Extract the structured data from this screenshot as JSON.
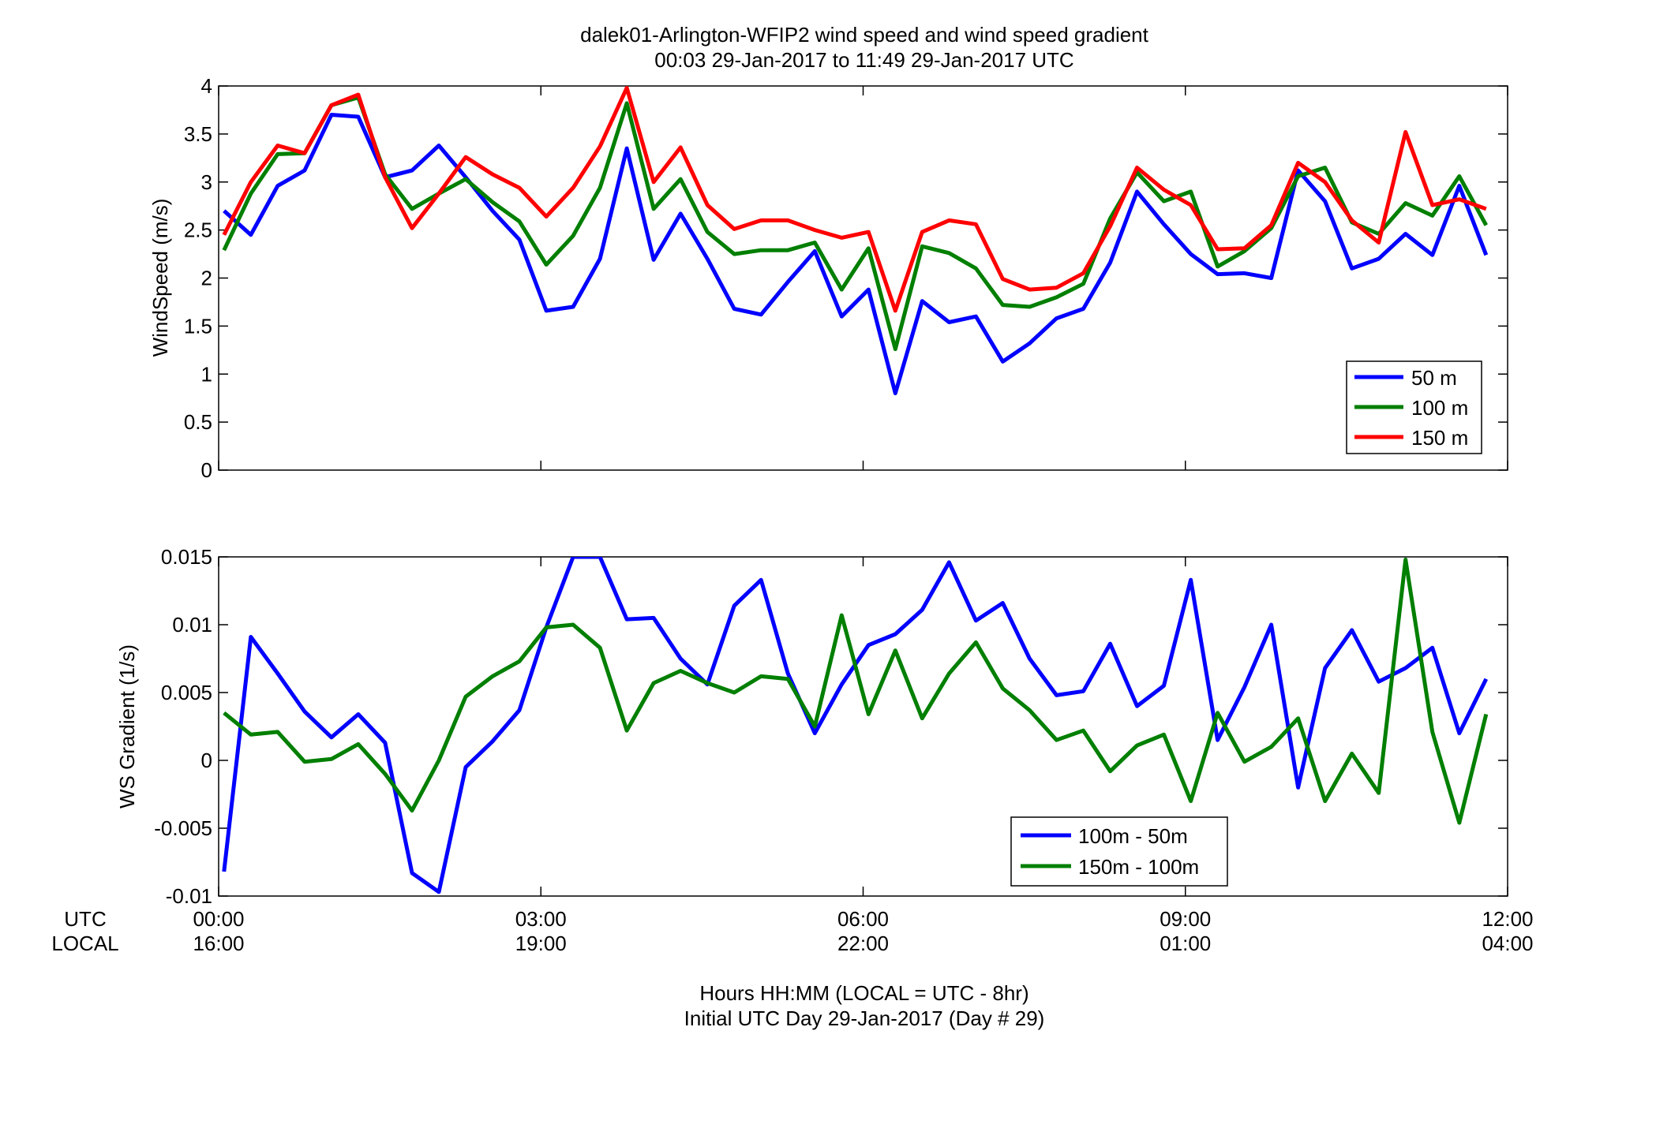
{
  "title": {
    "line1": "dalek01-Arlington-WFIP2  wind speed and wind speed gradient",
    "line2": "00:03 29-Jan-2017 to 11:49 29-Jan-2017  UTC"
  },
  "xaxis": {
    "row_labels": [
      "UTC",
      "LOCAL"
    ],
    "utc_ticks": [
      "00:00",
      "03:00",
      "06:00",
      "09:00",
      "12:00"
    ],
    "local_ticks": [
      "16:00",
      "19:00",
      "22:00",
      "01:00",
      "04:00"
    ],
    "xlabel_line1": "Hours HH:MM  (LOCAL = UTC - 8hr)",
    "xlabel_line2": "Initial UTC Day 29-Jan-2017 (Day # 29)"
  },
  "chart_data": [
    {
      "type": "line",
      "ylabel": "WindSpeed (m/s)",
      "ylim": [
        0,
        4
      ],
      "yticks": [
        0,
        0.5,
        1,
        1.5,
        2,
        2.5,
        3,
        3.5,
        4
      ],
      "xlim_hours": [
        0,
        12
      ],
      "grid": false,
      "legend_position": "bottom-right",
      "x_hours": [
        0.05,
        0.3,
        0.55,
        0.8,
        1.05,
        1.3,
        1.55,
        1.8,
        2.05,
        2.3,
        2.55,
        2.8,
        3.05,
        3.3,
        3.55,
        3.8,
        4.05,
        4.3,
        4.55,
        4.8,
        5.05,
        5.3,
        5.55,
        5.8,
        6.05,
        6.3,
        6.55,
        6.8,
        7.05,
        7.3,
        7.55,
        7.8,
        8.05,
        8.3,
        8.55,
        8.8,
        9.05,
        9.3,
        9.55,
        9.8,
        10.05,
        10.3,
        10.55,
        10.8,
        11.05,
        11.3,
        11.55,
        11.8
      ],
      "series": [
        {
          "name": "50 m",
          "color": "#0000ff",
          "values": [
            2.7,
            2.45,
            2.96,
            3.12,
            3.7,
            3.68,
            3.05,
            3.12,
            3.38,
            3.05,
            2.7,
            2.4,
            1.66,
            1.7,
            2.2,
            3.35,
            2.19,
            2.67,
            2.2,
            1.68,
            1.62,
            1.96,
            2.28,
            1.6,
            1.88,
            0.8,
            1.76,
            1.54,
            1.6,
            1.13,
            1.32,
            1.58,
            1.68,
            2.16,
            2.9,
            2.56,
            2.25,
            2.04,
            2.05,
            2.0,
            3.12,
            2.8,
            2.1,
            2.2,
            2.46,
            2.24,
            2.96,
            2.24
          ]
        },
        {
          "name": "100 m",
          "color": "#007f00",
          "values": [
            2.29,
            2.88,
            3.29,
            3.3,
            3.8,
            3.88,
            3.08,
            2.72,
            2.88,
            3.03,
            2.79,
            2.59,
            2.14,
            2.44,
            2.94,
            3.82,
            2.72,
            3.03,
            2.48,
            2.25,
            2.29,
            2.29,
            2.37,
            1.88,
            2.31,
            1.26,
            2.33,
            2.26,
            2.1,
            1.72,
            1.7,
            1.8,
            1.94,
            2.62,
            3.1,
            2.8,
            2.9,
            2.12,
            2.28,
            2.52,
            3.06,
            3.15,
            2.58,
            2.46,
            2.78,
            2.65,
            3.06,
            2.55
          ]
        },
        {
          "name": "150 m",
          "color": "#ff0000",
          "values": [
            2.45,
            3.0,
            3.38,
            3.3,
            3.8,
            3.91,
            3.05,
            2.52,
            2.88,
            3.26,
            3.08,
            2.94,
            2.64,
            2.94,
            3.37,
            3.98,
            3.0,
            3.36,
            2.76,
            2.51,
            2.6,
            2.6,
            2.5,
            2.42,
            2.48,
            1.66,
            2.48,
            2.6,
            2.56,
            1.99,
            1.88,
            1.9,
            2.05,
            2.54,
            3.15,
            2.92,
            2.76,
            2.3,
            2.31,
            2.55,
            3.2,
            3.0,
            2.6,
            2.37,
            3.52,
            2.76,
            2.82,
            2.72
          ]
        }
      ]
    },
    {
      "type": "line",
      "ylabel": "WS Gradient (1/s)",
      "ylim": [
        -0.01,
        0.015
      ],
      "yticks": [
        -0.01,
        -0.005,
        0,
        0.005,
        0.01,
        0.015
      ],
      "ytick_labels": [
        "-0.01",
        "-0.005",
        "0",
        "0.005",
        "0.01",
        "0.015"
      ],
      "xlim_hours": [
        0,
        12
      ],
      "grid": false,
      "legend_position": "bottom-center",
      "x_hours": [
        0.05,
        0.3,
        0.55,
        0.8,
        1.05,
        1.3,
        1.55,
        1.8,
        2.05,
        2.3,
        2.55,
        2.8,
        3.05,
        3.3,
        3.55,
        3.8,
        4.05,
        4.3,
        4.55,
        4.8,
        5.05,
        5.3,
        5.55,
        5.8,
        6.05,
        6.3,
        6.55,
        6.8,
        7.05,
        7.3,
        7.55,
        7.8,
        8.05,
        8.3,
        8.55,
        8.8,
        9.05,
        9.3,
        9.55,
        9.8,
        10.05,
        10.3,
        10.55,
        10.8,
        11.05,
        11.3,
        11.55,
        11.8
      ],
      "series": [
        {
          "name": "100m - 50m",
          "color": "#0000ff",
          "values": [
            -0.0082,
            0.0091,
            0.0064,
            0.0036,
            0.0017,
            0.0034,
            0.0013,
            -0.0083,
            -0.0097,
            -0.0005,
            0.0014,
            0.0037,
            0.0098,
            0.015,
            0.015,
            0.0104,
            0.0105,
            0.0075,
            0.0056,
            0.0114,
            0.0133,
            0.0064,
            0.002,
            0.0056,
            0.0085,
            0.0093,
            0.0111,
            0.0146,
            0.0103,
            0.0116,
            0.0075,
            0.0048,
            0.0051,
            0.0086,
            0.004,
            0.0055,
            0.0133,
            0.0015,
            0.0054,
            0.01,
            -0.002,
            0.0068,
            0.0096,
            0.0058,
            0.0068,
            0.0083,
            0.002,
            0.006
          ]
        },
        {
          "name": "150m - 100m",
          "color": "#007f00",
          "values": [
            0.0035,
            0.0019,
            0.0021,
            -0.0001,
            0.0001,
            0.0012,
            -0.001,
            -0.0037,
            0.0,
            0.0047,
            0.0062,
            0.0073,
            0.0098,
            0.01,
            0.0083,
            0.0022,
            0.0057,
            0.0066,
            0.0057,
            0.005,
            0.0062,
            0.006,
            0.0025,
            0.0107,
            0.0034,
            0.0081,
            0.0031,
            0.0064,
            0.0087,
            0.0053,
            0.0037,
            0.0015,
            0.0022,
            -0.0008,
            0.0011,
            0.0019,
            -0.003,
            0.0035,
            -0.0001,
            0.001,
            0.0031,
            -0.003,
            0.0005,
            -0.0024,
            0.0148,
            0.0021,
            -0.0046,
            0.0034
          ]
        }
      ]
    }
  ]
}
